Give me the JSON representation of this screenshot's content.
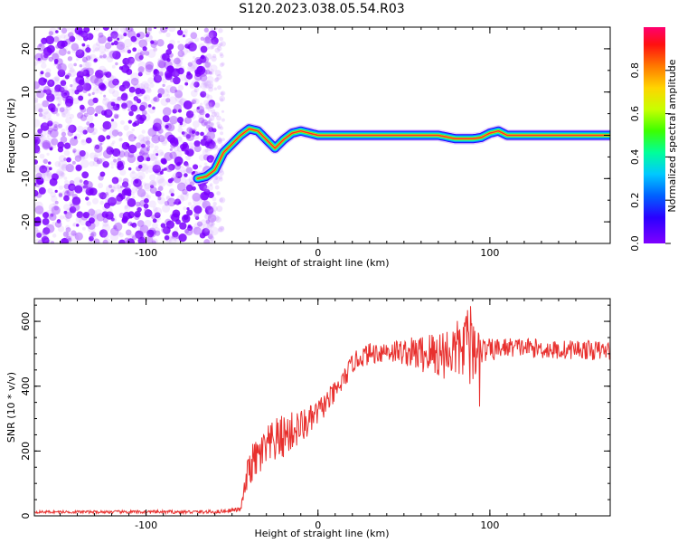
{
  "title": "S120.2023.038.05.54.R03",
  "colors": {
    "snr_line": "#e8302e",
    "scatter": "#7b00ff",
    "frame": "#000000"
  },
  "chart_data": [
    {
      "type": "heatmap",
      "name": "spectrogram",
      "xlabel": "Height of straight line (km)",
      "ylabel": "Frequency (Hz)",
      "xlim": [
        -165,
        170
      ],
      "ylim": [
        -25,
        25
      ],
      "x_ticks": [
        -100,
        0,
        100
      ],
      "x_tick_labels": [
        "-100",
        "0",
        "100"
      ],
      "y_ticks": [
        -20,
        -10,
        0,
        10,
        20
      ],
      "y_tick_labels": [
        "-20",
        "-10",
        "0",
        "10",
        "20"
      ],
      "colorbar": {
        "label": "Normalized spectral amplitude",
        "range": [
          0,
          1
        ],
        "ticks": [
          0.0,
          0.2,
          0.4,
          0.6,
          0.8
        ],
        "tick_labels": [
          "0.0",
          "0.2",
          "0.4",
          "0.6",
          "0.8"
        ],
        "colormap": "rainbow"
      },
      "noise_region_x": [
        -165,
        -60
      ],
      "ridge": {
        "x": [
          -70,
          -65,
          -60,
          -55,
          -50,
          -45,
          -40,
          -35,
          -30,
          -25,
          -20,
          -15,
          -10,
          0,
          10,
          20,
          30,
          40,
          50,
          60,
          70,
          80,
          90,
          95,
          100,
          105,
          110,
          120,
          140,
          160,
          170
        ],
        "freq": [
          -10,
          -9.5,
          -8,
          -4,
          -2,
          0,
          1.5,
          1,
          -1,
          -3,
          -1,
          0.5,
          1,
          0,
          0,
          0,
          0,
          0,
          0,
          0,
          0,
          -0.8,
          -0.8,
          -0.5,
          0.5,
          1,
          0,
          0,
          0,
          0,
          0
        ]
      }
    },
    {
      "type": "line",
      "name": "snr",
      "xlabel": "Height of straight line (km)",
      "ylabel": "SNR (10 * v/v)",
      "xlim": [
        -165,
        170
      ],
      "ylim": [
        0,
        670
      ],
      "x_ticks": [
        -100,
        0,
        100
      ],
      "x_tick_labels": [
        "-100",
        "0",
        "100"
      ],
      "y_ticks": [
        0,
        200,
        400,
        600
      ],
      "y_tick_labels": [
        "0",
        "200",
        "400",
        "600"
      ],
      "envelope": {
        "x": [
          -165,
          -60,
          -45,
          -40,
          -35,
          -25,
          -15,
          -5,
          0,
          10,
          15,
          20,
          25,
          30,
          40,
          50,
          60,
          70,
          80,
          85,
          90,
          95,
          100,
          110,
          120,
          130,
          140,
          150,
          160,
          170
        ],
        "y": [
          12,
          12,
          20,
          150,
          180,
          230,
          260,
          290,
          320,
          380,
          420,
          470,
          490,
          500,
          510,
          505,
          500,
          500,
          510,
          520,
          510,
          510,
          510,
          520,
          520,
          515,
          510,
          515,
          510,
          510
        ]
      },
      "noise_amplitude": {
        "x": [
          -165,
          -45,
          -40,
          -30,
          -20,
          0,
          20,
          50,
          70,
          80,
          90,
          95,
          110,
          170
        ],
        "y": [
          4,
          6,
          60,
          70,
          70,
          40,
          30,
          40,
          80,
          90,
          110,
          40,
          30,
          30
        ]
      },
      "peak_max": 670,
      "peak_max_x": 90
    }
  ]
}
